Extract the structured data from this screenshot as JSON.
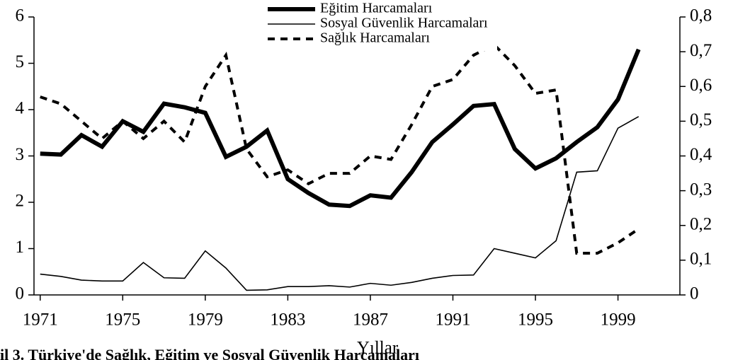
{
  "chart_data": {
    "type": "line",
    "caption": "il 3. Türkiye'de Sağlık, Eğitim ve Sosyal Güvenlik Harcamaları",
    "x_label": "Yıllar",
    "x": [
      1971,
      1972,
      1973,
      1974,
      1975,
      1976,
      1977,
      1978,
      1979,
      1980,
      1981,
      1982,
      1983,
      1984,
      1985,
      1986,
      1987,
      1988,
      1989,
      1990,
      1991,
      1992,
      1993,
      1994,
      1995,
      1996,
      1997,
      1998,
      1999,
      2000
    ],
    "xlim": [
      1970.7,
      2002
    ],
    "xticks": [
      1971,
      1975,
      1979,
      1983,
      1987,
      1991,
      1995,
      1999
    ],
    "ylim": [
      0,
      6
    ],
    "yticks": [
      0,
      1,
      2,
      3,
      4,
      5,
      6
    ],
    "y2lim": [
      0,
      0.8
    ],
    "y2ticks": [
      {
        "value": 0,
        "label": "0"
      },
      {
        "value": 0.1,
        "label": "0,1"
      },
      {
        "value": 0.2,
        "label": "0,2"
      },
      {
        "value": 0.3,
        "label": "0,3"
      },
      {
        "value": 0.4,
        "label": "0,4"
      },
      {
        "value": 0.5,
        "label": "0,5"
      },
      {
        "value": 0.6,
        "label": "0,6"
      },
      {
        "value": 0.7,
        "label": "0,7"
      },
      {
        "value": 0.8,
        "label": "0,8"
      }
    ],
    "series": [
      {
        "name": "Eğitim Harcamaları",
        "color": "#000000",
        "style": "thick",
        "values": [
          3.05,
          3.03,
          3.45,
          3.2,
          3.75,
          3.52,
          4.13,
          4.05,
          3.93,
          2.98,
          3.2,
          3.55,
          2.5,
          2.2,
          1.95,
          1.92,
          2.15,
          2.1,
          2.65,
          3.3,
          3.68,
          4.08,
          4.12,
          3.15,
          2.73,
          2.95,
          3.3,
          3.62,
          4.22,
          5.3
        ]
      },
      {
        "name": "Sosyal Güvenlik Harcamaları",
        "color": "#000000",
        "style": "thin",
        "values": [
          0.45,
          0.4,
          0.32,
          0.3,
          0.3,
          0.7,
          0.37,
          0.36,
          0.95,
          0.58,
          0.1,
          0.11,
          0.18,
          0.18,
          0.2,
          0.17,
          0.25,
          0.21,
          0.27,
          0.36,
          0.42,
          0.43,
          1.0,
          0.9,
          0.8,
          1.17,
          2.65,
          2.68,
          3.6,
          3.85
        ]
      },
      {
        "name": "Sağlık Harcamaları",
        "color": "#000000",
        "style": "dashed",
        "axis": "y2",
        "values": [
          0.57,
          0.55,
          0.5,
          0.45,
          0.5,
          0.45,
          0.5,
          0.44,
          0.6,
          0.69,
          0.42,
          0.34,
          0.36,
          0.32,
          0.35,
          0.35,
          0.4,
          0.39,
          0.49,
          0.6,
          0.62,
          0.69,
          0.72,
          0.66,
          0.58,
          0.59,
          0.12,
          0.12,
          0.15,
          0.19
        ]
      }
    ]
  }
}
